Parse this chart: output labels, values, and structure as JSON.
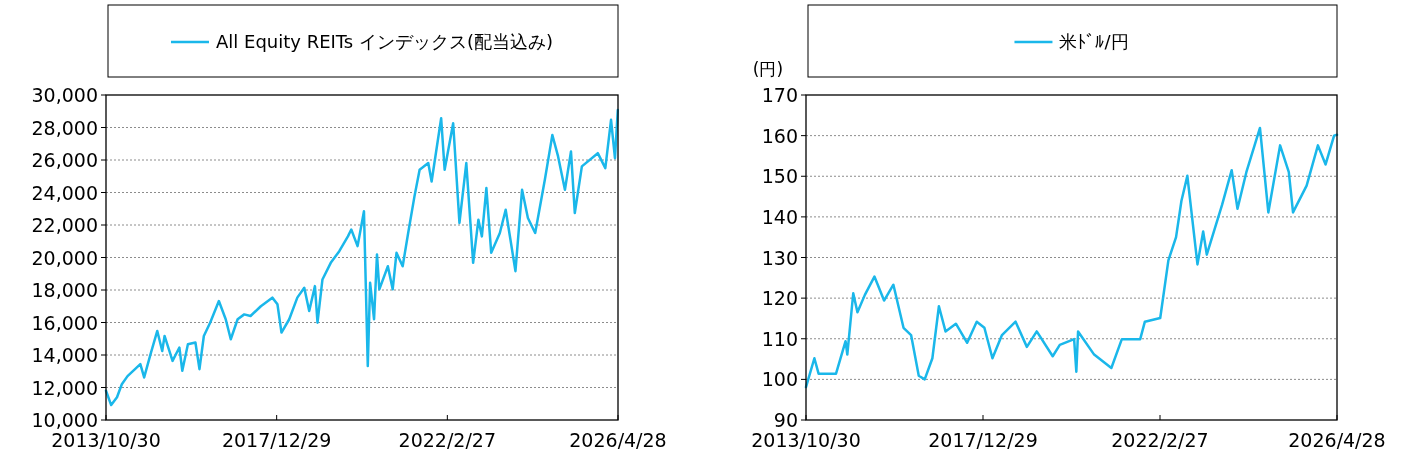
{
  "chart_data": [
    {
      "type": "line",
      "legend": "top",
      "grid": "y",
      "xlim": [
        "2013-10-30",
        "2026-04-28"
      ],
      "xticks": [
        {
          "value": "2013-10-30",
          "label": "2013/10/30"
        },
        {
          "value": "2017-12-29",
          "label": "2017/12/29"
        },
        {
          "value": "2022-02-27",
          "label": "2022/2/27"
        },
        {
          "value": "2026-04-28",
          "label": "2026/4/28"
        }
      ],
      "ylim": [
        10000,
        30000
      ],
      "yticks": [
        {
          "value": 10000,
          "label": "10,000"
        },
        {
          "value": 12000,
          "label": "12,000"
        },
        {
          "value": 14000,
          "label": "14,000"
        },
        {
          "value": 16000,
          "label": "16,000"
        },
        {
          "value": 18000,
          "label": "18,000"
        },
        {
          "value": 20000,
          "label": "20,000"
        },
        {
          "value": 22000,
          "label": "22,000"
        },
        {
          "value": 24000,
          "label": "24,000"
        },
        {
          "value": 26000,
          "label": "26,000"
        },
        {
          "value": 28000,
          "label": "28,000"
        },
        {
          "value": 30000,
          "label": "30,000"
        }
      ],
      "series": [
        {
          "name": "All Equity REITs インデックス(配当込み)",
          "color": "#1ab7ea",
          "x": [
            "2013-10-30",
            "2013-12-15",
            "2014-02-05",
            "2014-03-20",
            "2014-05-10",
            "2014-09-01",
            "2014-10-05",
            "2014-12-01",
            "2015-01-30",
            "2015-03-15",
            "2015-04-05",
            "2015-06-15",
            "2015-08-15",
            "2015-09-10",
            "2015-10-30",
            "2016-01-05",
            "2016-02-10",
            "2016-03-20",
            "2016-05-15",
            "2016-08-01",
            "2016-10-01",
            "2016-11-15",
            "2017-01-15",
            "2017-03-15",
            "2017-05-10",
            "2017-08-10",
            "2017-11-20",
            "2018-01-05",
            "2018-02-10",
            "2018-04-20",
            "2018-07-01",
            "2018-09-01",
            "2018-10-15",
            "2018-12-05",
            "2018-12-28",
            "2019-02-10",
            "2019-04-25",
            "2019-07-10",
            "2019-09-25",
            "2019-10-25",
            "2019-12-20",
            "2020-02-15",
            "2020-03-20",
            "2020-04-10",
            "2020-05-15",
            "2020-06-10",
            "2020-07-01",
            "2020-09-15",
            "2020-10-28",
            "2020-12-01",
            "2021-01-25",
            "2021-03-15",
            "2021-05-10",
            "2021-06-25",
            "2021-09-10",
            "2021-10-10",
            "2022-01-03",
            "2022-02-03",
            "2022-04-20",
            "2022-06-15",
            "2022-08-15",
            "2022-10-15",
            "2022-12-01",
            "2023-01-01",
            "2023-02-10",
            "2023-03-25",
            "2023-06-10",
            "2023-08-01",
            "2023-10-27",
            "2023-12-25",
            "2024-02-15",
            "2024-04-20",
            "2024-07-15",
            "2024-09-20",
            "2024-11-10",
            "2025-01-10",
            "2025-03-05",
            "2025-04-08",
            "2025-06-10",
            "2025-10-30",
            "2026-01-05",
            "2026-02-25",
            "2026-04-01",
            "2026-04-26"
          ],
          "values": [
            11800,
            10920,
            11400,
            12200,
            12700,
            13440,
            12620,
            14050,
            15480,
            14250,
            15170,
            13640,
            14460,
            13030,
            14660,
            14770,
            13130,
            15170,
            15990,
            17320,
            16200,
            14970,
            16200,
            16500,
            16400,
            17000,
            17530,
            17120,
            15380,
            16200,
            17530,
            18140,
            16710,
            18240,
            15990,
            18650,
            19670,
            20390,
            21300,
            21720,
            20700,
            22840,
            13330,
            18440,
            16200,
            20190,
            18040,
            19460,
            18040,
            20290,
            19460,
            21510,
            23760,
            25400,
            25810,
            24680,
            28570,
            25400,
            28260,
            22130,
            25810,
            19670,
            22330,
            21300,
            24270,
            20290,
            21510,
            22940,
            19160,
            24170,
            22430,
            21510,
            24780,
            27540,
            26220,
            24170,
            26520,
            22740,
            25610,
            26420,
            25500,
            28470,
            26110,
            29080
          ]
        }
      ]
    },
    {
      "type": "line",
      "legend": "top",
      "grid": "y",
      "ylabel": "(円)",
      "xlim": [
        "2013-10-30",
        "2026-04-28"
      ],
      "xticks": [
        {
          "value": "2013-10-30",
          "label": "2013/10/30"
        },
        {
          "value": "2017-12-29",
          "label": "2017/12/29"
        },
        {
          "value": "2022-02-27",
          "label": "2022/2/27"
        },
        {
          "value": "2026-04-28",
          "label": "2026/4/28"
        }
      ],
      "ylim": [
        90,
        170
      ],
      "yticks": [
        90,
        100,
        110,
        120,
        130,
        140,
        150,
        160,
        170
      ],
      "series": [
        {
          "name": "米ﾄﾞﾙ/円",
          "color": "#1ab7ea",
          "x": [
            "2013-10-30",
            "2014-01-10",
            "2014-02-15",
            "2014-07-15",
            "2014-10-05",
            "2014-10-20",
            "2014-12-10",
            "2015-01-15",
            "2015-03-20",
            "2015-06-10",
            "2015-09-01",
            "2015-11-20",
            "2016-02-15",
            "2016-04-20",
            "2016-06-25",
            "2016-08-15",
            "2016-10-20",
            "2016-12-15",
            "2017-02-10",
            "2017-05-10",
            "2017-08-15",
            "2017-11-05",
            "2018-01-10",
            "2018-03-20",
            "2018-06-10",
            "2018-10-05",
            "2019-01-10",
            "2019-04-05",
            "2019-08-20",
            "2019-10-20",
            "2020-02-20",
            "2020-03-10",
            "2020-03-25",
            "2020-08-10",
            "2021-01-05",
            "2021-04-05",
            "2021-09-10",
            "2021-10-20",
            "2022-03-01",
            "2022-05-10",
            "2022-07-15",
            "2022-08-30",
            "2022-10-20",
            "2023-01-15",
            "2023-03-05",
            "2023-04-05",
            "2023-08-15",
            "2023-11-05",
            "2023-12-25",
            "2024-03-10",
            "2024-07-05",
            "2024-09-15",
            "2024-12-25",
            "2025-03-10",
            "2025-04-15",
            "2025-08-10",
            "2025-11-15",
            "2026-01-20",
            "2026-04-03",
            "2026-04-28"
          ],
          "values": [
            98.1,
            105.2,
            101.4,
            101.4,
            109.4,
            106.1,
            121.2,
            116.5,
            120.8,
            125.3,
            119.4,
            123.3,
            112.7,
            110.9,
            100.9,
            100.0,
            105.2,
            118.0,
            111.8,
            113.7,
            109.0,
            114.2,
            112.7,
            105.2,
            110.9,
            114.2,
            108.0,
            111.8,
            105.7,
            108.5,
            109.9,
            101.9,
            111.8,
            106.1,
            102.8,
            109.9,
            109.9,
            114.2,
            115.1,
            129.3,
            135.0,
            143.9,
            150.1,
            128.3,
            136.4,
            130.7,
            143.0,
            151.5,
            142.0,
            151.0,
            161.9,
            141.1,
            157.6,
            151.0,
            141.1,
            147.7,
            157.6,
            152.9,
            160.0,
            160.2
          ]
        }
      ]
    }
  ]
}
